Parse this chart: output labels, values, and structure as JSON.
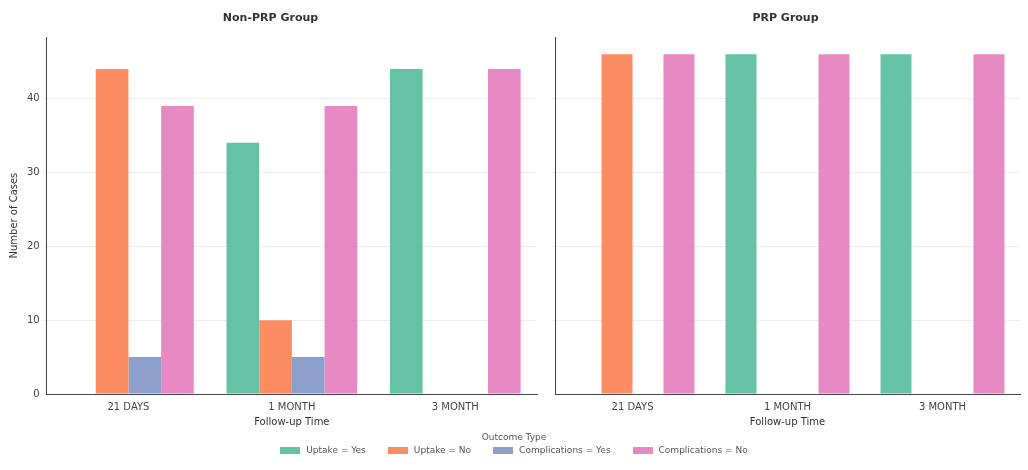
{
  "chart_data": [
    {
      "type": "bar",
      "title": "Non-PRP Group",
      "xlabel": "Follow-up Time",
      "ylabel": "Number of Cases",
      "categories": [
        "21 DAYS",
        "1 MONTH",
        "3 MONTH"
      ],
      "series": [
        {
          "name": "Uptake = Yes",
          "color": "#66c2a5",
          "values": [
            null,
            34,
            44
          ]
        },
        {
          "name": "Uptake = No",
          "color": "#fc8d62",
          "values": [
            44,
            10,
            null
          ]
        },
        {
          "name": "Complications = Yes",
          "color": "#8da0cb",
          "values": [
            5,
            5,
            null
          ]
        },
        {
          "name": "Complications = No",
          "color": "#e78ac3",
          "values": [
            39,
            39,
            44
          ]
        }
      ],
      "ylim": [
        0,
        48.3
      ],
      "yticks": [
        0,
        10,
        20,
        30,
        40
      ],
      "grid": "y",
      "legend": "bottom",
      "legend_title": "Outcome Type"
    },
    {
      "type": "bar",
      "title": "PRP Group",
      "xlabel": "Follow-up Time",
      "categories": [
        "21 DAYS",
        "1 MONTH",
        "3 MONTH"
      ],
      "series": [
        {
          "color": "#66c2a5",
          "values": [
            null,
            46,
            46
          ]
        },
        {
          "color": "#fc8d62",
          "values": [
            46,
            null,
            null
          ]
        },
        {
          "color": "#8da0cb",
          "values": [
            null,
            null,
            null
          ]
        },
        {
          "color": "#e78ac3",
          "values": [
            46,
            46,
            46
          ]
        }
      ],
      "ylim": [
        0,
        48.3
      ],
      "yticks": [
        0,
        10,
        20,
        30,
        40
      ],
      "grid": "y",
      "tick_labels": "x"
    }
  ]
}
